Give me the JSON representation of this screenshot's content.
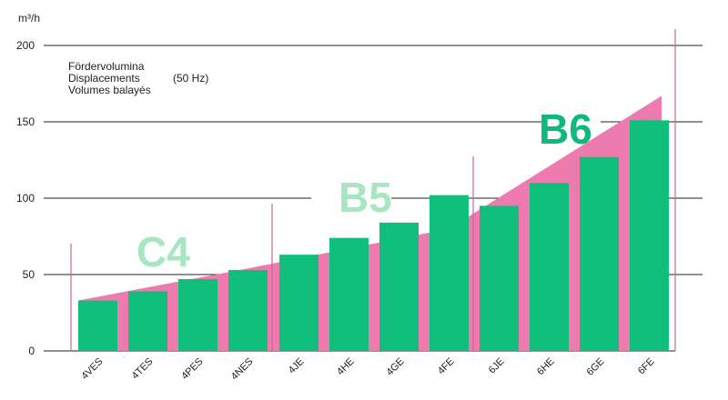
{
  "chart_data": {
    "type": "bar",
    "unit_label": "m³/h",
    "ylim": [
      0,
      210
    ],
    "yticks": [
      0,
      50,
      100,
      150,
      200
    ],
    "grid": true,
    "legend_lines": [
      "Fördervolumina",
      "Displacements",
      "Volumes balayés"
    ],
    "legend_note": "(50 Hz)",
    "categories": [
      "4VES",
      "4TES",
      "4PES",
      "4NES",
      "4JE",
      "4HE",
      "4GE",
      "4FE",
      "6JE",
      "6HE",
      "6GE",
      "6FE"
    ],
    "values": [
      33,
      39,
      47,
      53,
      63,
      74,
      84,
      102,
      95,
      110,
      127,
      151
    ],
    "groups": [
      {
        "label": "C4",
        "color": "#a8e6c2",
        "members": [
          "4VES",
          "4TES",
          "4PES",
          "4NES"
        ]
      },
      {
        "label": "B5",
        "color": "#a8e6c2",
        "members": [
          "4JE",
          "4HE",
          "4GE",
          "4FE"
        ]
      },
      {
        "label": "B6",
        "color": "#10b97a",
        "members": [
          "6JE",
          "6HE",
          "6GE",
          "6FE"
        ]
      }
    ],
    "envelope": {
      "color": "#ee7bb0",
      "points": [
        [
          0,
          33
        ],
        [
          3,
          54
        ],
        [
          7,
          80
        ],
        [
          11,
          167
        ]
      ]
    },
    "colors": {
      "bar": "#10bf7c",
      "grid": "#222222",
      "divider": "#cc6699"
    }
  }
}
